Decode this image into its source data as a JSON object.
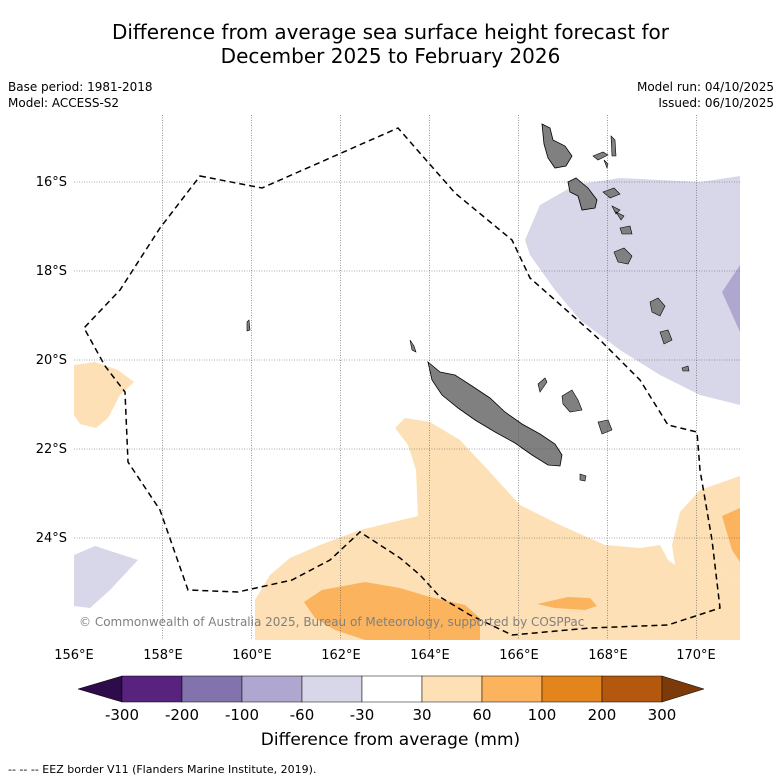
{
  "title_line1": "Difference from average sea surface height forecast for",
  "title_line2": "December 2025 to February 2026",
  "meta_left": {
    "base_period": "Base period: 1981-2018",
    "model": "Model: ACCESS-S2"
  },
  "meta_right": {
    "model_run": "Model run: 04/10/2025",
    "issued": "Issued: 06/10/2025"
  },
  "copyright": "© Commonwealth of Australia 2025, Bureau of Meteorology, supported by COSPPac",
  "lon_labels": [
    "156°E",
    "158°E",
    "160°E",
    "162°E",
    "164°E",
    "166°E",
    "168°E",
    "170°E"
  ],
  "lat_labels": [
    "16°S",
    "18°S",
    "20°S",
    "22°S",
    "24°S"
  ],
  "colorbar": {
    "label": "Difference from average (mm)",
    "tick_labels": [
      "-300",
      "-200",
      "-100",
      "-60",
      "-30",
      "30",
      "60",
      "100",
      "200",
      "300"
    ],
    "colors": {
      "below_min": "#2e0b4a",
      "bins": [
        "#57237f",
        "#8373ad",
        "#b0a7d1",
        "#d7d7e9",
        "#ffffff",
        "#fde0b5",
        "#fbb45d",
        "#e3841c",
        "#b3580d"
      ],
      "above_max": "#7b3a08"
    }
  },
  "footnote": "--  --  -- EEZ border V11 (Flanders Marine Institute, 2019).",
  "colors": {
    "land": "#808080",
    "eez": "#000000",
    "grid": "#555555"
  }
}
